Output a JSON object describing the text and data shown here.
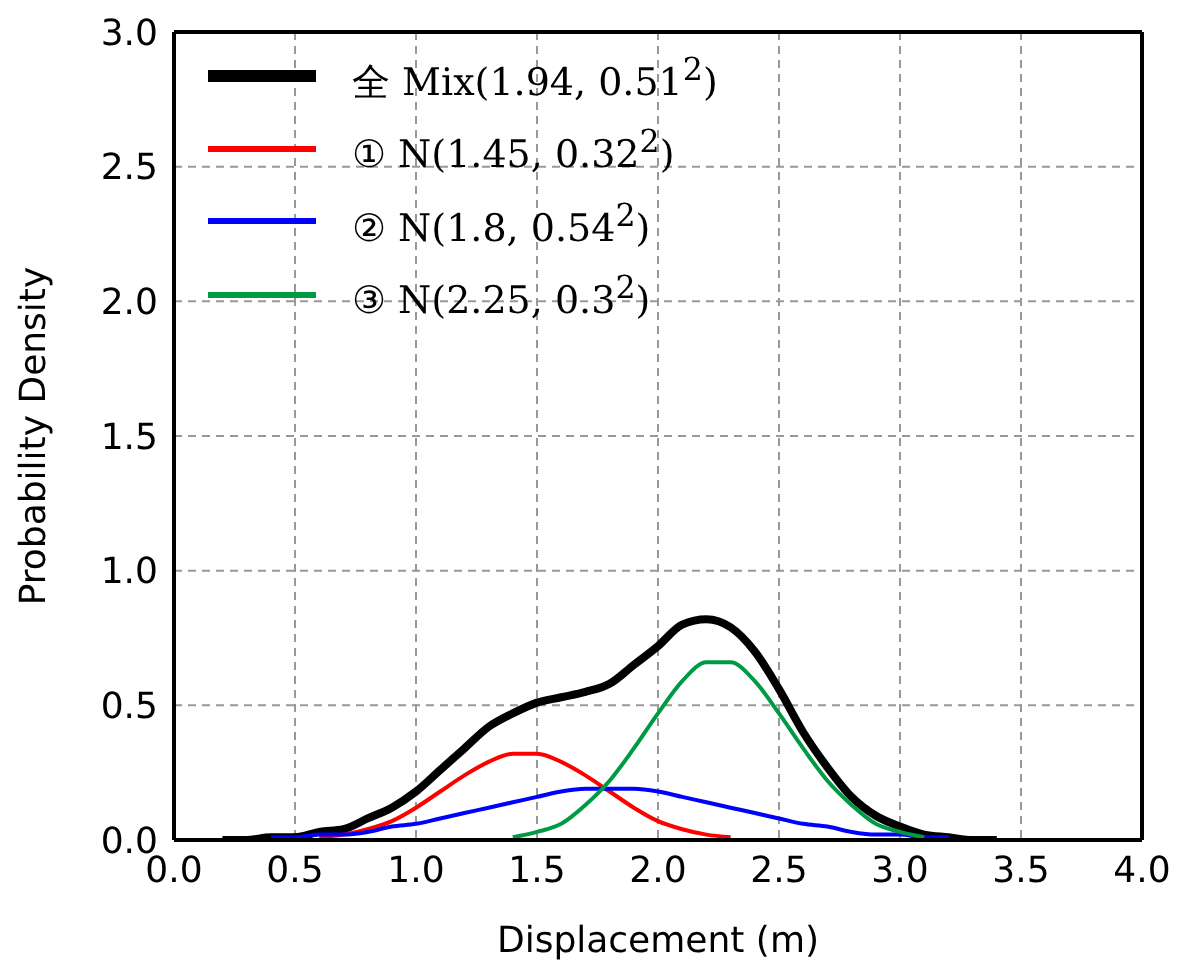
{
  "chart_data": {
    "type": "line",
    "xlabel": "Displacement (m)",
    "ylabel": "Probability Density",
    "xlim": [
      0,
      4
    ],
    "xticks": [
      {
        "value": 0,
        "label": "0.0"
      },
      {
        "value": 0.5,
        "label": "0.5"
      },
      {
        "value": 1,
        "label": "1.0"
      },
      {
        "value": 1.5,
        "label": "1.5"
      },
      {
        "value": 2,
        "label": "2.0"
      },
      {
        "value": 2.5,
        "label": "2.5"
      },
      {
        "value": 3,
        "label": "3.0"
      },
      {
        "value": 3.5,
        "label": "3.5"
      },
      {
        "value": 4,
        "label": "4.0"
      }
    ],
    "ylim": [
      0,
      3
    ],
    "yticks": [
      {
        "value": 0,
        "label": "0.0"
      },
      {
        "value": 0.5,
        "label": "0.5"
      },
      {
        "value": 1,
        "label": "1.0"
      },
      {
        "value": 1.5,
        "label": "1.5"
      },
      {
        "value": 2,
        "label": "2.0"
      },
      {
        "value": 2.5,
        "label": "2.5"
      },
      {
        "value": 3,
        "label": "3.0"
      }
    ],
    "grid": true,
    "legend": "top left",
    "marker": "none",
    "line_style": "solid",
    "series": [
      {
        "name": "全 Mix(1.94, 0.51$^{2}$)",
        "color": "#000000",
        "x": [
          0.2,
          0.3,
          0.4,
          0.5,
          0.6,
          0.7,
          0.8,
          0.9,
          1.0,
          1.1,
          1.2,
          1.3,
          1.4,
          1.5,
          1.6,
          1.7,
          1.8,
          1.9,
          2.0,
          2.1,
          2.2,
          2.3,
          2.4,
          2.5,
          2.6,
          2.7,
          2.8,
          2.9,
          3.0,
          3.1,
          3.2,
          3.3,
          3.4
        ],
        "values": [
          0.0,
          0.0,
          0.01,
          0.01,
          0.03,
          0.04,
          0.08,
          0.12,
          0.18,
          0.26,
          0.34,
          0.42,
          0.47,
          0.51,
          0.53,
          0.55,
          0.58,
          0.65,
          0.72,
          0.8,
          0.82,
          0.79,
          0.7,
          0.56,
          0.4,
          0.27,
          0.16,
          0.09,
          0.05,
          0.02,
          0.01,
          0.0,
          0.0
        ]
      },
      {
        "name": "① N(1.45, 0.32$^{2}$)",
        "color": "#ff0000",
        "x": [
          0.6,
          0.7,
          0.8,
          0.9,
          1.0,
          1.1,
          1.2,
          1.3,
          1.4,
          1.5,
          1.6,
          1.7,
          1.8,
          1.9,
          2.0,
          2.1,
          2.2,
          2.3
        ],
        "values": [
          0.01,
          0.02,
          0.04,
          0.07,
          0.12,
          0.18,
          0.24,
          0.29,
          0.32,
          0.32,
          0.29,
          0.24,
          0.18,
          0.12,
          0.07,
          0.04,
          0.02,
          0.01
        ]
      },
      {
        "name": "② N(1.8, 0.54$^{2}$)",
        "color": "#0000ff",
        "x": [
          0.4,
          0.5,
          0.6,
          0.7,
          0.8,
          0.9,
          1.0,
          1.1,
          1.2,
          1.3,
          1.4,
          1.5,
          1.6,
          1.7,
          1.8,
          1.9,
          2.0,
          2.1,
          2.2,
          2.3,
          2.4,
          2.5,
          2.6,
          2.7,
          2.8,
          2.9,
          3.0,
          3.1,
          3.2
        ],
        "values": [
          0.01,
          0.01,
          0.02,
          0.02,
          0.03,
          0.05,
          0.06,
          0.08,
          0.1,
          0.12,
          0.14,
          0.16,
          0.18,
          0.19,
          0.19,
          0.19,
          0.18,
          0.16,
          0.14,
          0.12,
          0.1,
          0.08,
          0.06,
          0.05,
          0.03,
          0.02,
          0.02,
          0.01,
          0.01
        ]
      },
      {
        "name": "③ N(2.25, 0.3$^{2}$)",
        "color": "#009a44",
        "x": [
          1.4,
          1.5,
          1.6,
          1.7,
          1.8,
          1.9,
          2.0,
          2.1,
          2.2,
          2.3,
          2.4,
          2.5,
          2.6,
          2.7,
          2.8,
          2.9,
          3.0,
          3.1
        ],
        "values": [
          0.01,
          0.03,
          0.06,
          0.13,
          0.22,
          0.34,
          0.47,
          0.59,
          0.66,
          0.66,
          0.59,
          0.47,
          0.34,
          0.22,
          0.13,
          0.06,
          0.03,
          0.01
        ]
      }
    ]
  }
}
